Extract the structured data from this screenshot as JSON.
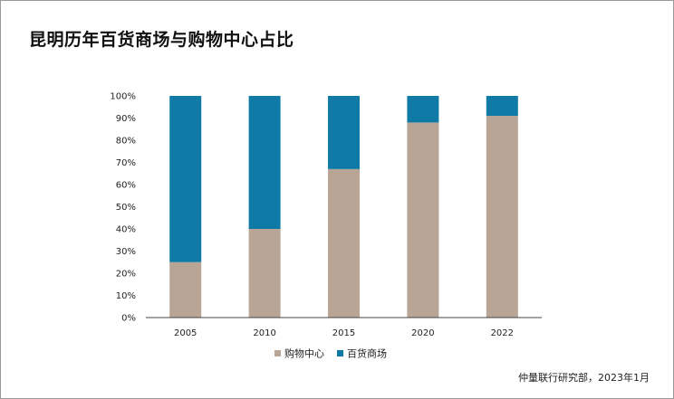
{
  "title": "昆明历年百货商场与购物中心占比",
  "source": "仲量联行研究部，2023年1月",
  "chart_data": {
    "type": "bar",
    "stacked": true,
    "title": "昆明历年百货商场与购物中心占比",
    "xlabel": "",
    "ylabel": "",
    "categories": [
      "2005",
      "2010",
      "2015",
      "2020",
      "2022"
    ],
    "yticks": [
      "0%",
      "10%",
      "20%",
      "30%",
      "40%",
      "50%",
      "60%",
      "70%",
      "80%",
      "90%",
      "100%"
    ],
    "ylim": [
      0,
      100
    ],
    "grid": false,
    "legend_position": "bottom",
    "series": [
      {
        "name": "购物中心",
        "color": "#b8a595",
        "values": [
          25,
          40,
          67,
          88,
          91
        ]
      },
      {
        "name": "百货商场",
        "color": "#0e7aa5",
        "values": [
          75,
          60,
          33,
          12,
          9
        ]
      }
    ]
  }
}
